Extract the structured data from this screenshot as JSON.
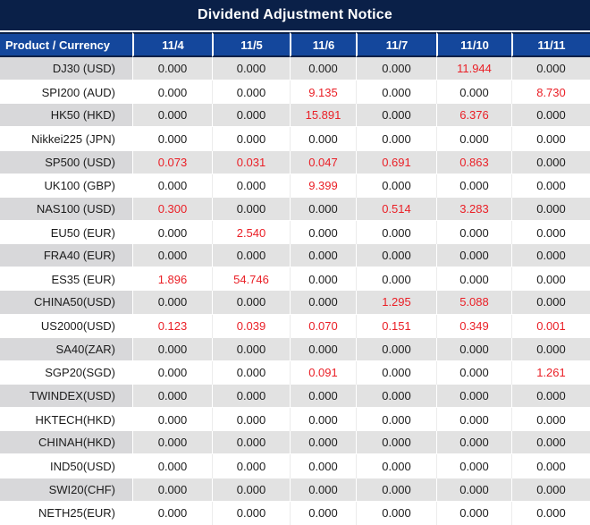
{
  "chart_data": {
    "type": "table",
    "title": "Dividend Adjustment Notice",
    "columns": [
      "Product / Currency",
      "11/4",
      "11/5",
      "11/6",
      "11/7",
      "11/10",
      "11/11"
    ],
    "rows": [
      {
        "product": "DJ30 (USD)",
        "values": [
          "0.000",
          "0.000",
          "0.000",
          "0.000",
          "11.944",
          "0.000"
        ],
        "red_indices": [
          4
        ]
      },
      {
        "product": "SPI200 (AUD)",
        "values": [
          "0.000",
          "0.000",
          "9.135",
          "0.000",
          "0.000",
          "8.730"
        ],
        "red_indices": [
          2,
          5
        ]
      },
      {
        "product": "HK50 (HKD)",
        "values": [
          "0.000",
          "0.000",
          "15.891",
          "0.000",
          "6.376",
          "0.000"
        ],
        "red_indices": [
          2,
          4
        ]
      },
      {
        "product": "Nikkei225 (JPN)",
        "values": [
          "0.000",
          "0.000",
          "0.000",
          "0.000",
          "0.000",
          "0.000"
        ],
        "red_indices": []
      },
      {
        "product": "SP500 (USD)",
        "values": [
          "0.073",
          "0.031",
          "0.047",
          "0.691",
          "0.863",
          "0.000"
        ],
        "red_indices": [
          0,
          1,
          2,
          3,
          4
        ]
      },
      {
        "product": "UK100 (GBP)",
        "values": [
          "0.000",
          "0.000",
          "9.399",
          "0.000",
          "0.000",
          "0.000"
        ],
        "red_indices": [
          2
        ]
      },
      {
        "product": "NAS100 (USD)",
        "values": [
          "0.300",
          "0.000",
          "0.000",
          "0.514",
          "3.283",
          "0.000"
        ],
        "red_indices": [
          0,
          3,
          4
        ]
      },
      {
        "product": "EU50 (EUR)",
        "values": [
          "0.000",
          "2.540",
          "0.000",
          "0.000",
          "0.000",
          "0.000"
        ],
        "red_indices": [
          1
        ]
      },
      {
        "product": "FRA40 (EUR)",
        "values": [
          "0.000",
          "0.000",
          "0.000",
          "0.000",
          "0.000",
          "0.000"
        ],
        "red_indices": []
      },
      {
        "product": "ES35 (EUR)",
        "values": [
          "1.896",
          "54.746",
          "0.000",
          "0.000",
          "0.000",
          "0.000"
        ],
        "red_indices": [
          0,
          1
        ]
      },
      {
        "product": "CHINA50(USD)",
        "values": [
          "0.000",
          "0.000",
          "0.000",
          "1.295",
          "5.088",
          "0.000"
        ],
        "red_indices": [
          3,
          4
        ]
      },
      {
        "product": "US2000(USD)",
        "values": [
          "0.123",
          "0.039",
          "0.070",
          "0.151",
          "0.349",
          "0.001"
        ],
        "red_indices": [
          0,
          1,
          2,
          3,
          4,
          5
        ]
      },
      {
        "product": "SA40(ZAR)",
        "values": [
          "0.000",
          "0.000",
          "0.000",
          "0.000",
          "0.000",
          "0.000"
        ],
        "red_indices": []
      },
      {
        "product": "SGP20(SGD)",
        "values": [
          "0.000",
          "0.000",
          "0.091",
          "0.000",
          "0.000",
          "1.261"
        ],
        "red_indices": [
          2,
          5
        ]
      },
      {
        "product": "TWINDEX(USD)",
        "values": [
          "0.000",
          "0.000",
          "0.000",
          "0.000",
          "0.000",
          "0.000"
        ],
        "red_indices": []
      },
      {
        "product": "HKTECH(HKD)",
        "values": [
          "0.000",
          "0.000",
          "0.000",
          "0.000",
          "0.000",
          "0.000"
        ],
        "red_indices": []
      },
      {
        "product": "CHINAH(HKD)",
        "values": [
          "0.000",
          "0.000",
          "0.000",
          "0.000",
          "0.000",
          "0.000"
        ],
        "red_indices": []
      },
      {
        "product": "IND50(USD)",
        "values": [
          "0.000",
          "0.000",
          "0.000",
          "0.000",
          "0.000",
          "0.000"
        ],
        "red_indices": []
      },
      {
        "product": "SWI20(CHF)",
        "values": [
          "0.000",
          "0.000",
          "0.000",
          "0.000",
          "0.000",
          "0.000"
        ],
        "red_indices": []
      },
      {
        "product": "NETH25(EUR)",
        "values": [
          "0.000",
          "0.000",
          "0.000",
          "0.000",
          "0.000",
          "0.000"
        ],
        "red_indices": []
      }
    ]
  },
  "colors": {
    "title_bg": "#0a2048",
    "header_bg": "#14479c",
    "negative_value": "#ea1f26",
    "row_alt_product_bg": "#d8d8da",
    "row_alt_value_bg": "#e2e2e2"
  }
}
